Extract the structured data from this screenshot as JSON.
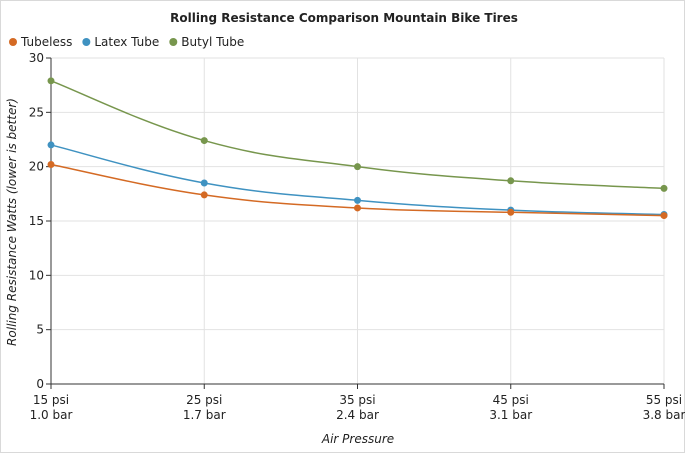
{
  "colors": {
    "tubeless": "#d46a24",
    "latex_tube": "#3f92c1",
    "butyl_tube": "#77964d",
    "grid": "#e2e2e2",
    "axis": "#333333"
  },
  "chart_data": {
    "type": "line",
    "title": "Rolling Resistance Comparison Mountain Bike Tires",
    "xlabel": "Air Pressure",
    "ylabel": "Rolling Resistance Watts (lower is better)",
    "categories": [
      "15 psi",
      "25 psi",
      "35 psi",
      "45 psi",
      "55 psi"
    ],
    "categories_secondary": [
      "1.0 bar",
      "1.7 bar",
      "2.4 bar",
      "3.1 bar",
      "3.8 bar"
    ],
    "ylim": [
      0,
      30
    ],
    "yticks": [
      0,
      5,
      10,
      15,
      20,
      25,
      30
    ],
    "grid": true,
    "legend_position": "top-left",
    "series": [
      {
        "name": "Tubeless",
        "color": "#d46a24",
        "values": [
          20.2,
          17.4,
          16.2,
          15.8,
          15.5
        ]
      },
      {
        "name": "Latex Tube",
        "color": "#3f92c1",
        "values": [
          22.0,
          18.5,
          16.9,
          16.0,
          15.6
        ]
      },
      {
        "name": "Butyl Tube",
        "color": "#77964d",
        "values": [
          27.9,
          22.4,
          20.0,
          18.7,
          18.0
        ]
      }
    ]
  }
}
